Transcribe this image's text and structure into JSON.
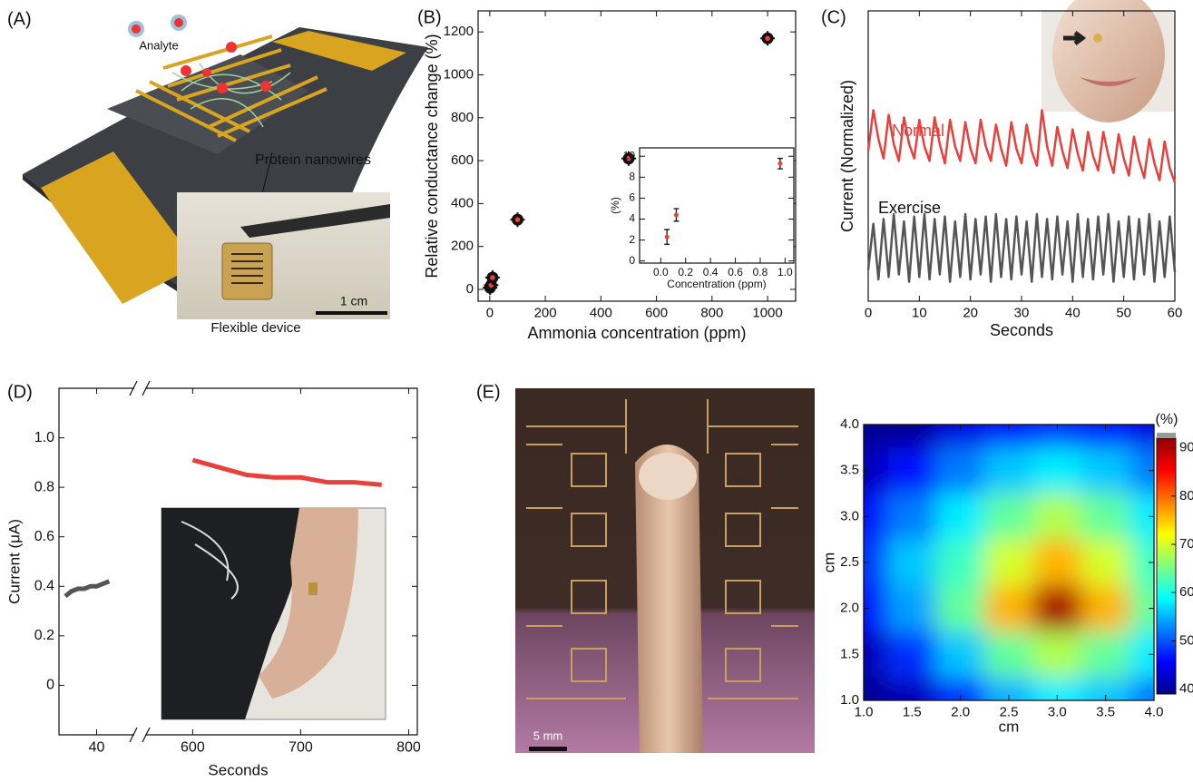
{
  "figure": {
    "panel_labels": [
      "(A)",
      "(B)",
      "(C)",
      "(D)",
      "(E)"
    ],
    "panel_a": {
      "analyte": "Analyte",
      "nanowires": "Protein nanowires",
      "scale_bar": "1 cm",
      "device": "Flexible device"
    },
    "panel_e": {
      "scale_bar": "5 mm"
    }
  },
  "chart_data": [
    {
      "type": "scatter",
      "xlabel": "Ammonia concentration (ppm)",
      "ylabel": "Relative conductance change (%)",
      "x": [
        1,
        5,
        10,
        100,
        500,
        1000
      ],
      "values": [
        8,
        20,
        55,
        325,
        610,
        1170
      ],
      "color": "#e8413c",
      "xlim": [
        -42,
        1101
      ],
      "ylim": [
        -55,
        1298
      ],
      "xticks": [
        0,
        200,
        400,
        600,
        800,
        1000
      ],
      "yticks": [
        0,
        200,
        400,
        600,
        800,
        1000,
        1200
      ]
    },
    {
      "type": "scatter",
      "xlabel": "Concentration (ppm)",
      "ylabel": "(%)",
      "x": [
        0.05,
        0.125,
        0.96
      ],
      "values": [
        2.3,
        4.4,
        9.3
      ],
      "errors": [
        0.7,
        0.6,
        0.5
      ],
      "color": "#e8413c",
      "xlim": [
        -0.17,
        1.07
      ],
      "ylim": [
        -0.2,
        10.8
      ],
      "xticks": [
        {
          "value": 0,
          "label": "0.0"
        },
        0.2,
        0.4,
        0.6,
        0.8,
        {
          "value": 1,
          "label": "1.0"
        }
      ],
      "yticks": [
        0,
        2,
        4,
        6,
        8,
        10
      ]
    },
    {
      "type": "line",
      "xlabel": "Seconds",
      "ylabel": "Current (Normalized)",
      "x": [
        0,
        1,
        2,
        3,
        4,
        5,
        6,
        7,
        8,
        9,
        10,
        11,
        12,
        13,
        14,
        15,
        16,
        17,
        18,
        19,
        20,
        21,
        22,
        23,
        24,
        25,
        26,
        27,
        28,
        29,
        30,
        31,
        32,
        33,
        34,
        35,
        36,
        37,
        38,
        39,
        40,
        41,
        42,
        43,
        44,
        45,
        46,
        47,
        48,
        49,
        50,
        51,
        52,
        53,
        54,
        55,
        56,
        57,
        58,
        59,
        60
      ],
      "series": [
        {
          "name": "Normal",
          "color": "#e8413c",
          "values": [
            6.2,
            7.9,
            6.7,
            5.9,
            7.7,
            6.5,
            5.8,
            7.6,
            6.5,
            5.9,
            7.5,
            6.4,
            5.8,
            7.6,
            6.5,
            5.7,
            7.5,
            6.4,
            5.8,
            7.4,
            6.3,
            5.7,
            7.5,
            6.4,
            5.8,
            7.3,
            6.3,
            5.6,
            7.4,
            6.3,
            5.7,
            7.3,
            6.2,
            5.6,
            7.9,
            6.4,
            5.6,
            7.2,
            6.2,
            5.5,
            7.1,
            6.1,
            5.4,
            7.0,
            6.0,
            5.4,
            7.0,
            6.0,
            5.3,
            6.9,
            5.9,
            5.2,
            6.8,
            5.8,
            5.1,
            6.7,
            5.7,
            5.0,
            6.6,
            5.5,
            4.9
          ]
        },
        {
          "name": "Exercise",
          "color": "#555555",
          "values": [
            1.3,
            3.2,
            0.9,
            3.4,
            1.0,
            3.6,
            1.1,
            3.3,
            0.8,
            3.5,
            1.0,
            3.6,
            0.9,
            3.4,
            1.1,
            3.5,
            0.8,
            3.3,
            1.0,
            3.6,
            0.9,
            3.4,
            1.1,
            3.5,
            0.8,
            3.6,
            1.0,
            3.4,
            0.9,
            3.5,
            1.1,
            3.3,
            0.8,
            3.6,
            1.0,
            3.4,
            0.9,
            3.5,
            1.1,
            3.3,
            0.8,
            3.6,
            1.0,
            3.4,
            0.9,
            3.5,
            1.1,
            3.6,
            0.8,
            3.3,
            1.0,
            3.5,
            0.9,
            3.4,
            1.1,
            3.6,
            0.8,
            3.3,
            1.0,
            3.5,
            1.2
          ]
        }
      ],
      "xlim": [
        0,
        60
      ],
      "ylim": [
        0,
        12
      ],
      "xticks": [
        0,
        10,
        20,
        30,
        40,
        50,
        60
      ]
    },
    {
      "type": "line",
      "xlabel": "Seconds",
      "ylabel": "Current (μA)",
      "x": [
        35,
        36,
        37,
        38,
        39,
        40,
        41,
        42,
        600,
        625,
        650,
        675,
        700,
        725,
        750,
        775
      ],
      "series": [
        {
          "color": "#555555",
          "values": [
            0.36,
            0.38,
            0.39,
            0.39,
            0.4,
            0.4,
            0.41,
            0.42,
            null,
            null,
            null,
            null,
            null,
            null,
            null,
            null
          ]
        },
        {
          "color": "#e8413c",
          "values": [
            null,
            null,
            null,
            null,
            null,
            null,
            null,
            null,
            0.91,
            0.88,
            0.85,
            0.84,
            0.84,
            0.82,
            0.82,
            0.81
          ]
        }
      ],
      "xlim": [
        34,
        808
      ],
      "xbreak": [
        46,
        556
      ],
      "ylim": [
        -0.2,
        1.2
      ],
      "xticks": [
        40,
        600,
        700,
        800
      ],
      "yticks": [
        0,
        0.2,
        0.4,
        0.6,
        0.8,
        {
          "value": 1,
          "label": "1.0"
        }
      ]
    },
    {
      "type": "heatmap",
      "xlabel": "cm",
      "ylabel": "cm",
      "x": [
        1,
        1.5,
        2,
        2.5,
        3,
        3.5,
        4
      ],
      "y": [
        1,
        1.5,
        2,
        2.5,
        3,
        3.5,
        4
      ],
      "z": [
        [
          40,
          42,
          48,
          55,
          58,
          56,
          52
        ],
        [
          42,
          48,
          56,
          64,
          68,
          64,
          58
        ],
        [
          46,
          54,
          64,
          76,
          90,
          76,
          64
        ],
        [
          48,
          56,
          62,
          70,
          76,
          70,
          62
        ],
        [
          46,
          52,
          58,
          64,
          68,
          64,
          58
        ],
        [
          42,
          46,
          52,
          56,
          58,
          56,
          52
        ],
        [
          40,
          40,
          44,
          46,
          48,
          46,
          44
        ]
      ],
      "xlim": [
        1,
        4
      ],
      "ylim": [
        1,
        4
      ],
      "xticks": [
        {
          "value": 1,
          "label": "1.0"
        },
        1.5,
        {
          "value": 2,
          "label": "2.0"
        },
        2.5,
        {
          "value": 3,
          "label": "3.0"
        },
        3.5,
        {
          "value": 4,
          "label": "4.0"
        }
      ],
      "yticks": [
        {
          "value": 1,
          "label": "1.0"
        },
        1.5,
        {
          "value": 2,
          "label": "2.0"
        },
        2.5,
        {
          "value": 3,
          "label": "3.0"
        },
        3.5,
        {
          "value": 4,
          "label": "4.0"
        }
      ],
      "colormap": "jet",
      "colorbar_label": "(%)",
      "zlim": [
        39,
        92
      ],
      "zticks": [
        40,
        50,
        60,
        70,
        80,
        90
      ]
    }
  ]
}
